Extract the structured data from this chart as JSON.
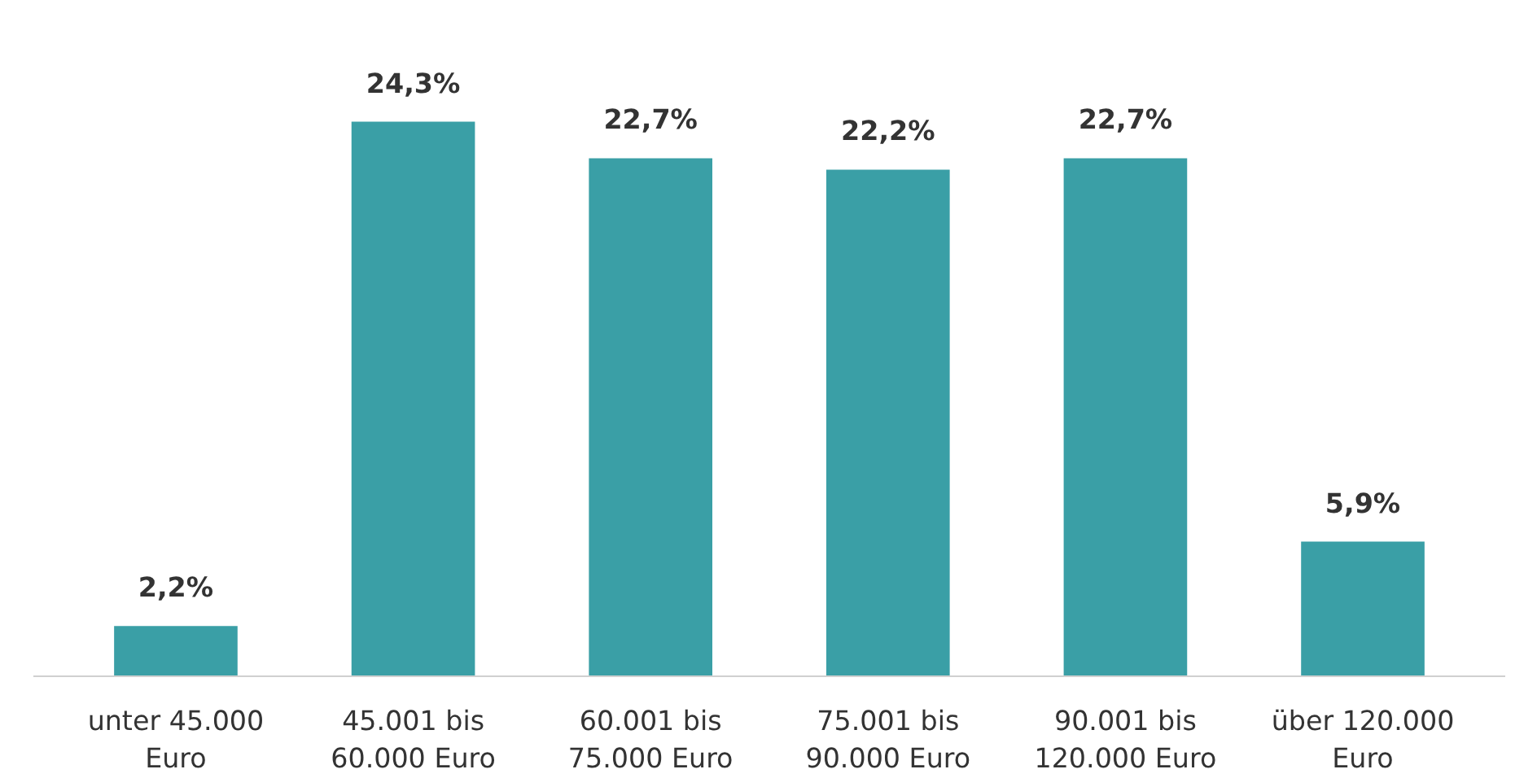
{
  "chart_data": {
    "type": "bar",
    "categories": [
      "unter 45.000\nEuro",
      "45.001 bis\n60.000 Euro",
      "60.001 bis\n75.000 Euro",
      "75.001 bis\n90.000 Euro",
      "90.001 bis\n120.000 Euro",
      "über 120.000\nEuro"
    ],
    "values": [
      2.2,
      24.3,
      22.7,
      22.2,
      22.7,
      5.9
    ],
    "value_labels": [
      "2,2%",
      "24,3%",
      "22,7%",
      "22,2%",
      "22,7%",
      "5,9%"
    ],
    "color": "#3a9fa6",
    "grid": false
  }
}
